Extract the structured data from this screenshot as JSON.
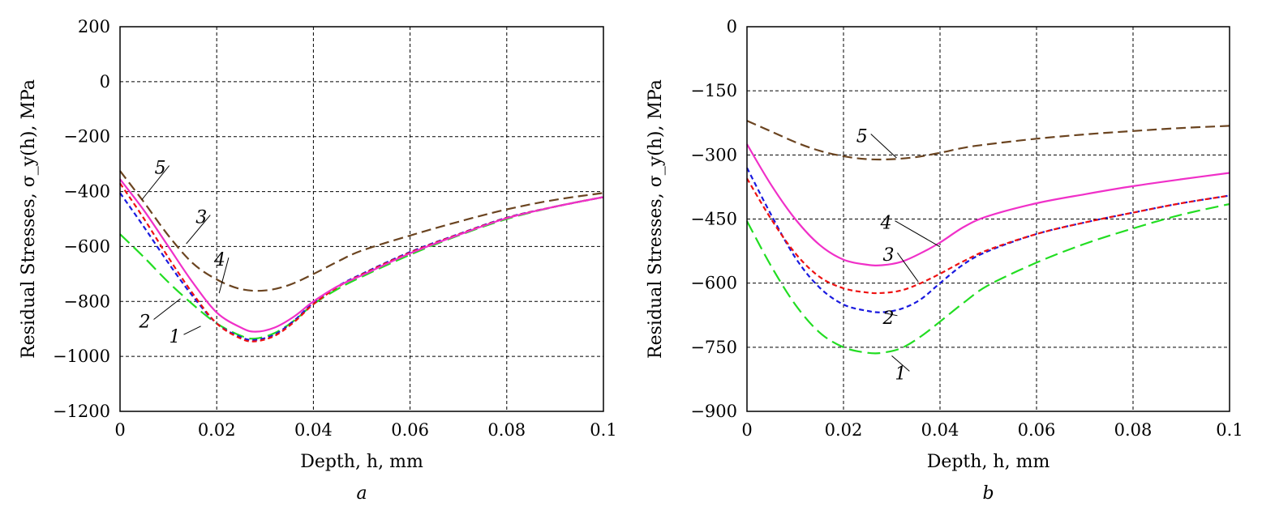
{
  "chart_data": [
    {
      "type": "line",
      "panel_label": "a",
      "xlabel": "Depth, h, mm",
      "ylabel": "Residual Stresses, σ_y(h), MPa",
      "xlim": [
        0,
        0.1
      ],
      "ylim": [
        -1200,
        200
      ],
      "x_ticks": [
        0,
        0.02,
        0.04,
        0.06,
        0.08,
        0.1
      ],
      "x_tick_labels": [
        "0",
        "0.02",
        "0.04",
        "0.06",
        "0.08",
        "0.1"
      ],
      "y_ticks": [
        -1200,
        -1000,
        -800,
        -600,
        -400,
        -200,
        0,
        200
      ],
      "y_tick_labels": [
        "−1200",
        "−1000",
        "−800",
        "−600",
        "−400",
        "−200",
        "0",
        "200"
      ],
      "grid": true,
      "series": [
        {
          "name": "1",
          "color": "#22dd22",
          "dash": "long",
          "x": [
            0,
            0.005,
            0.01,
            0.015,
            0.02,
            0.025,
            0.028,
            0.032,
            0.036,
            0.04,
            0.045,
            0.05,
            0.06,
            0.07,
            0.08,
            0.09,
            0.1
          ],
          "y": [
            -555,
            -640,
            -730,
            -810,
            -880,
            -925,
            -935,
            -915,
            -870,
            -810,
            -755,
            -710,
            -630,
            -560,
            -500,
            -455,
            -420
          ]
        },
        {
          "name": "2",
          "color": "#1a1adf",
          "dash": "short",
          "x": [
            0,
            0.005,
            0.01,
            0.015,
            0.02,
            0.025,
            0.028,
            0.032,
            0.036,
            0.04,
            0.045,
            0.05,
            0.06,
            0.07,
            0.08,
            0.09,
            0.1
          ],
          "y": [
            -405,
            -530,
            -660,
            -780,
            -880,
            -930,
            -940,
            -920,
            -870,
            -805,
            -745,
            -700,
            -620,
            -555,
            -495,
            -455,
            -420
          ]
        },
        {
          "name": "3",
          "color": "#ee1111",
          "dash": "short",
          "x": [
            0,
            0.005,
            0.01,
            0.015,
            0.02,
            0.025,
            0.028,
            0.032,
            0.036,
            0.04,
            0.045,
            0.05,
            0.06,
            0.07,
            0.08,
            0.09,
            0.1
          ],
          "y": [
            -370,
            -500,
            -640,
            -770,
            -880,
            -935,
            -945,
            -925,
            -875,
            -810,
            -748,
            -702,
            -622,
            -556,
            -496,
            -455,
            -420
          ]
        },
        {
          "name": "4",
          "color": "#f030c8",
          "dash": "solid",
          "x": [
            0,
            0.005,
            0.01,
            0.015,
            0.02,
            0.025,
            0.028,
            0.032,
            0.036,
            0.04,
            0.045,
            0.05,
            0.06,
            0.07,
            0.08,
            0.09,
            0.1
          ],
          "y": [
            -355,
            -470,
            -600,
            -730,
            -840,
            -895,
            -910,
            -895,
            -855,
            -800,
            -745,
            -705,
            -625,
            -558,
            -497,
            -455,
            -420
          ]
        },
        {
          "name": "5",
          "color": "#6b4420",
          "dash": "dashed",
          "x": [
            0,
            0.005,
            0.01,
            0.015,
            0.02,
            0.025,
            0.03,
            0.035,
            0.04,
            0.045,
            0.05,
            0.06,
            0.07,
            0.08,
            0.09,
            0.1
          ],
          "y": [
            -325,
            -440,
            -560,
            -660,
            -720,
            -755,
            -760,
            -740,
            -700,
            -655,
            -615,
            -560,
            -510,
            -465,
            -430,
            -405
          ]
        }
      ],
      "annotations": [
        {
          "text": "1",
          "x": 0.0125,
          "y": -950,
          "lx": 0.0167,
          "ly": -890
        },
        {
          "text": "2",
          "x": 0.0063,
          "y": -895,
          "lx": 0.0125,
          "ly": -790
        },
        {
          "text": "3",
          "x": 0.018,
          "y": -515,
          "lx": 0.0137,
          "ly": -590
        },
        {
          "text": "4",
          "x": 0.0218,
          "y": -670,
          "lx": 0.0205,
          "ly": -770
        },
        {
          "text": "5",
          "x": 0.0095,
          "y": -335,
          "lx": 0.0045,
          "ly": -430
        }
      ]
    },
    {
      "type": "line",
      "panel_label": "b",
      "xlabel": "Depth, h, mm",
      "ylabel": "Residual Stresses, σ_y(h), MPa",
      "xlim": [
        0,
        0.1
      ],
      "ylim": [
        -900,
        0
      ],
      "x_ticks": [
        0,
        0.02,
        0.04,
        0.06,
        0.08,
        0.1
      ],
      "x_tick_labels": [
        "0",
        "0.02",
        "0.04",
        "0.06",
        "0.08",
        "0.1"
      ],
      "y_ticks": [
        -900,
        -750,
        -600,
        -450,
        -300,
        -150,
        0
      ],
      "y_tick_labels": [
        "−900",
        "−750",
        "−600",
        "−450",
        "−300",
        "−150",
        "0"
      ],
      "grid": true,
      "series": [
        {
          "name": "1",
          "color": "#22dd22",
          "dash": "long",
          "x": [
            0,
            0.005,
            0.01,
            0.015,
            0.02,
            0.025,
            0.028,
            0.032,
            0.036,
            0.04,
            0.045,
            0.05,
            0.06,
            0.07,
            0.08,
            0.09,
            0.1
          ],
          "y": [
            -455,
            -560,
            -650,
            -715,
            -750,
            -763,
            -763,
            -752,
            -725,
            -690,
            -645,
            -605,
            -552,
            -508,
            -472,
            -440,
            -415
          ]
        },
        {
          "name": "2",
          "color": "#1a1adf",
          "dash": "short",
          "x": [
            0,
            0.005,
            0.01,
            0.015,
            0.02,
            0.025,
            0.028,
            0.032,
            0.036,
            0.04,
            0.045,
            0.05,
            0.06,
            0.07,
            0.08,
            0.09,
            0.1
          ],
          "y": [
            -330,
            -440,
            -540,
            -610,
            -650,
            -665,
            -668,
            -660,
            -638,
            -600,
            -555,
            -525,
            -485,
            -458,
            -435,
            -413,
            -395
          ]
        },
        {
          "name": "3",
          "color": "#ee1111",
          "dash": "short",
          "x": [
            0,
            0.005,
            0.01,
            0.015,
            0.02,
            0.025,
            0.028,
            0.032,
            0.036,
            0.04,
            0.045,
            0.05,
            0.06,
            0.07,
            0.08,
            0.09,
            0.1
          ],
          "y": [
            -355,
            -450,
            -530,
            -585,
            -612,
            -622,
            -623,
            -617,
            -600,
            -578,
            -548,
            -522,
            -485,
            -458,
            -435,
            -413,
            -395
          ]
        },
        {
          "name": "4",
          "color": "#f030c8",
          "dash": "solid",
          "x": [
            0,
            0.005,
            0.01,
            0.015,
            0.02,
            0.025,
            0.028,
            0.032,
            0.036,
            0.04,
            0.045,
            0.05,
            0.06,
            0.07,
            0.08,
            0.09,
            0.1
          ],
          "y": [
            -275,
            -370,
            -450,
            -510,
            -545,
            -557,
            -558,
            -550,
            -530,
            -505,
            -468,
            -443,
            -413,
            -392,
            -373,
            -357,
            -342
          ]
        },
        {
          "name": "5",
          "color": "#6b4420",
          "dash": "dashed",
          "x": [
            0,
            0.005,
            0.01,
            0.015,
            0.02,
            0.025,
            0.03,
            0.035,
            0.04,
            0.045,
            0.05,
            0.06,
            0.07,
            0.08,
            0.09,
            0.1
          ],
          "y": [
            -220,
            -245,
            -270,
            -290,
            -303,
            -310,
            -310,
            -305,
            -295,
            -283,
            -275,
            -262,
            -252,
            -244,
            -237,
            -232
          ]
        }
      ],
      "annotations": [
        {
          "text": "1",
          "x": 0.033,
          "y": -825,
          "lx": 0.03,
          "ly": -770
        },
        {
          "text": "2",
          "x": 0.0305,
          "y": -695,
          "lx": 0.0285,
          "ly": -670
        },
        {
          "text": "3",
          "x": 0.0305,
          "y": -548,
          "lx": 0.0355,
          "ly": -597
        },
        {
          "text": "4",
          "x": 0.03,
          "y": -473,
          "lx": 0.04,
          "ly": -515
        },
        {
          "text": "5",
          "x": 0.025,
          "y": -270,
          "lx": 0.031,
          "ly": -307
        }
      ]
    }
  ]
}
